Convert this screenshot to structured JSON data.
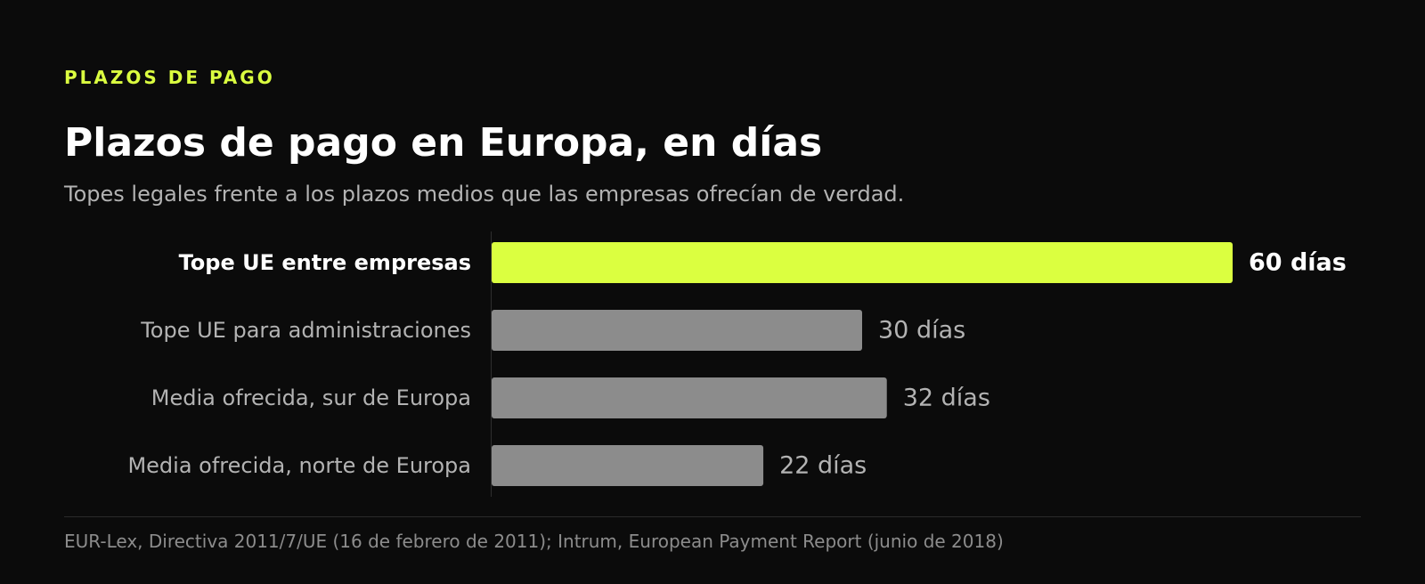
{
  "header": {
    "eyebrow": "PLAZOS DE PAGO",
    "title": "Plazos de pago en Europa, en días",
    "subtitle": "Topes legales frente a los plazos medios que las empresas ofrecían de verdad."
  },
  "chart_data": {
    "type": "bar",
    "orientation": "horizontal",
    "categories": [
      "Tope UE entre empresas",
      "Tope UE para administraciones",
      "Media ofrecida, sur de Europa",
      "Media ofrecida, norte de Europa"
    ],
    "values": [
      60,
      30,
      32,
      22
    ],
    "value_labels": [
      "60 días",
      "30 días",
      "32 días",
      "22 días"
    ],
    "highlight_index": 0,
    "xlim": [
      0,
      60
    ],
    "grid": false,
    "legend": "none"
  },
  "colors": {
    "accent": "#dbff40",
    "bar_default": "#8c8c8c",
    "label_default": "#b3b3b3",
    "label_highlight": "#ffffff",
    "axis": "#2e2e2e"
  },
  "footer": {
    "source": "EUR-Lex, Directiva 2011/7/UE (16 de febrero de 2011); Intrum, European Payment Report (junio de 2018)"
  }
}
